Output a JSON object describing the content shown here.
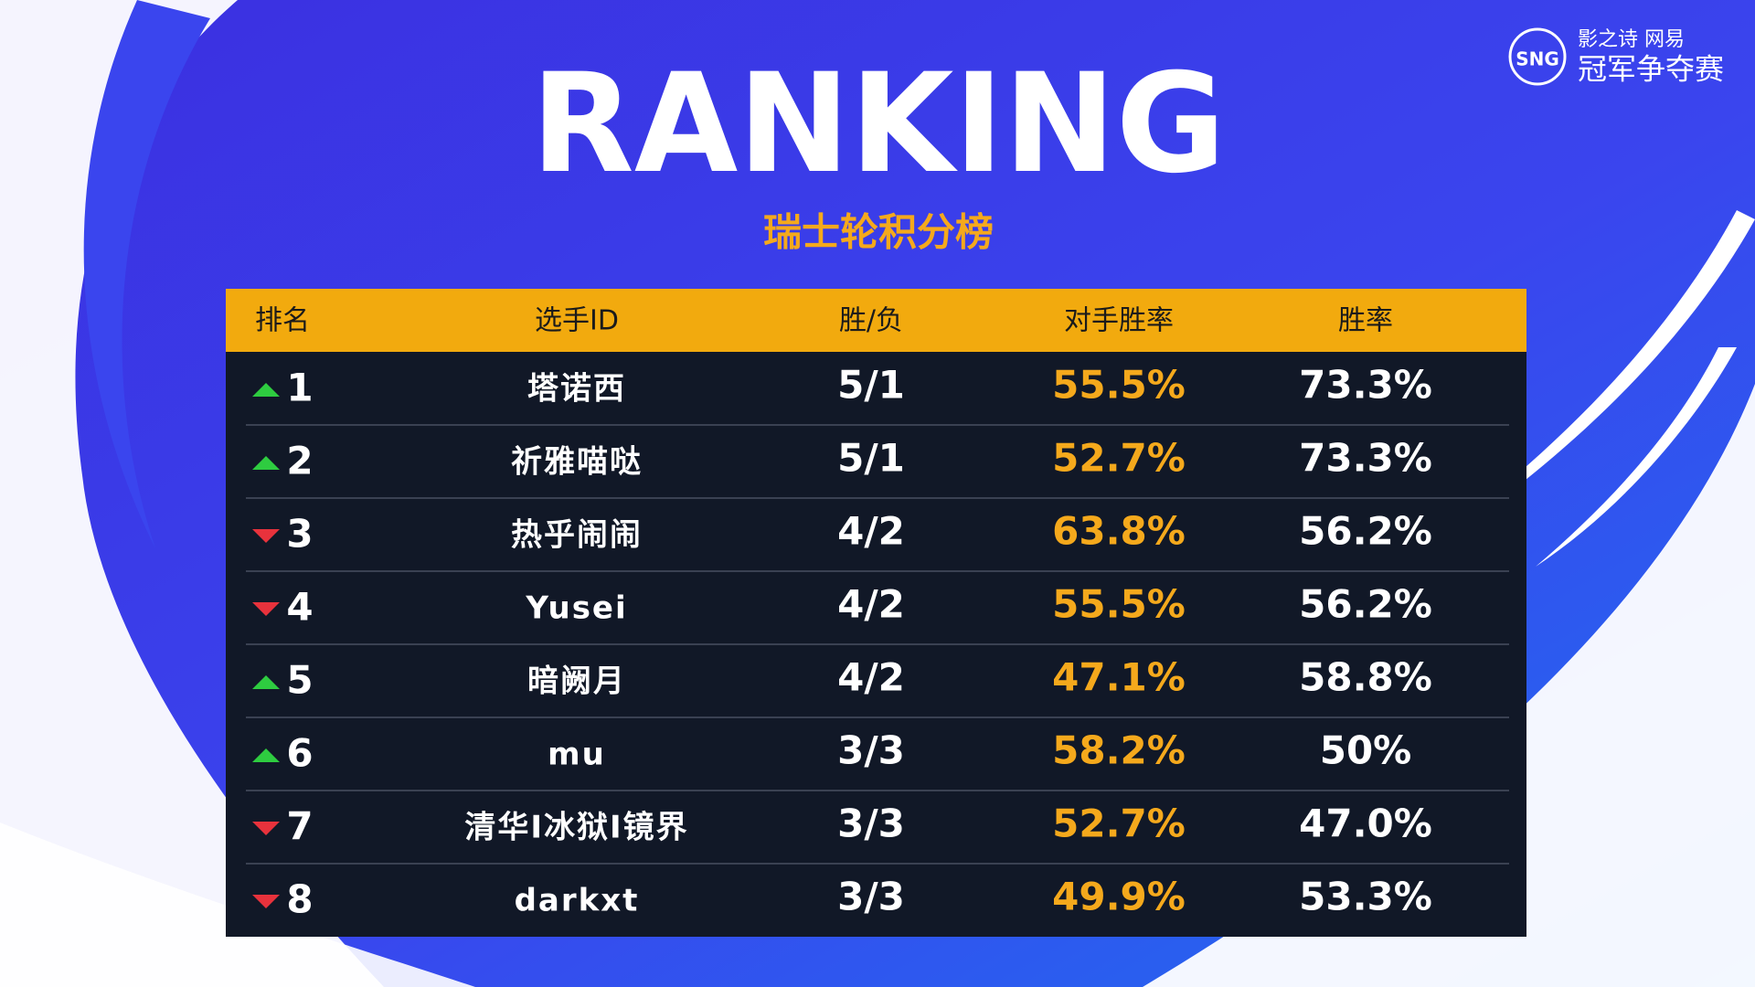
{
  "header": {
    "title": "RANKING",
    "subtitle": "瑞士轮积分榜"
  },
  "logo": {
    "emblem": "SNG",
    "line1": "影之诗 网易",
    "line2": "冠军争夺赛"
  },
  "table": {
    "columns": [
      "排名",
      "选手ID",
      "胜/负",
      "对手胜率",
      "胜率"
    ],
    "rows": [
      {
        "trend": "up",
        "rank": 1,
        "player": "塔诺西",
        "record": "5/1",
        "opponent_win_rate": "55.5%",
        "win_rate": "73.3%"
      },
      {
        "trend": "up",
        "rank": 2,
        "player": "祈雅喵哒",
        "record": "5/1",
        "opponent_win_rate": "52.7%",
        "win_rate": "73.3%"
      },
      {
        "trend": "down",
        "rank": 3,
        "player": "热乎闹闹",
        "record": "4/2",
        "opponent_win_rate": "63.8%",
        "win_rate": "56.2%"
      },
      {
        "trend": "down",
        "rank": 4,
        "player": "Yusei",
        "record": "4/2",
        "opponent_win_rate": "55.5%",
        "win_rate": "56.2%"
      },
      {
        "trend": "up",
        "rank": 5,
        "player": "暗阙月",
        "record": "4/2",
        "opponent_win_rate": "47.1%",
        "win_rate": "58.8%"
      },
      {
        "trend": "up",
        "rank": 6,
        "player": "mu",
        "record": "3/3",
        "opponent_win_rate": "58.2%",
        "win_rate": "50%"
      },
      {
        "trend": "down",
        "rank": 7,
        "player": "清华I冰狱I镜界",
        "record": "3/3",
        "opponent_win_rate": "52.7%",
        "win_rate": "47.0%"
      },
      {
        "trend": "down",
        "rank": 8,
        "player": "darkxt",
        "record": "3/3",
        "opponent_win_rate": "49.9%",
        "win_rate": "53.3%"
      }
    ]
  }
}
